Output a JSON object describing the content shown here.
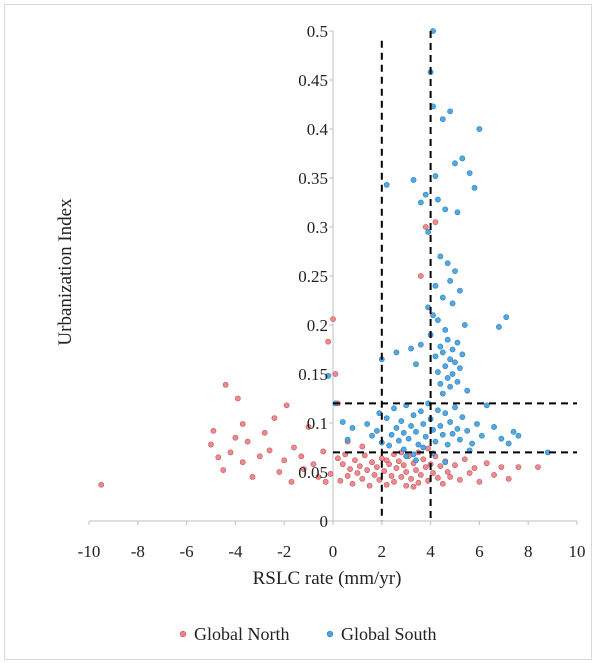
{
  "chart_data": {
    "type": "scatter",
    "xlabel": "RSLC rate (mm/yr)",
    "ylabel": "Urbanization Index",
    "xlim": [
      -10,
      10
    ],
    "ylim": [
      0,
      0.5
    ],
    "x_ticks": [
      "-10",
      "-8",
      "-6",
      "-4",
      "-2",
      "0",
      "2",
      "4",
      "6",
      "8",
      "10"
    ],
    "y_ticks": [
      "0",
      "0.05",
      "0.1",
      "0.15",
      "0.2",
      "0.25",
      "0.3",
      "0.35",
      "0.4",
      "0.45",
      "0.5"
    ],
    "legend_position": "bottom",
    "threshold_lines": {
      "vertical_x": [
        2,
        4
      ],
      "horizontal_y": [
        0.07,
        0.12
      ],
      "style": "dashed black"
    },
    "series": [
      {
        "name": "Global North",
        "color": "#e8858a",
        "points": [
          [
            -9.5,
            0.037
          ],
          [
            -4.4,
            0.139
          ],
          [
            -3.9,
            0.125
          ],
          [
            -3.7,
            0.099
          ],
          [
            -4.9,
            0.092
          ],
          [
            -5.0,
            0.078
          ],
          [
            -4.7,
            0.065
          ],
          [
            -4.5,
            0.052
          ],
          [
            -4.2,
            0.07
          ],
          [
            -4.0,
            0.085
          ],
          [
            -3.7,
            0.06
          ],
          [
            -3.5,
            0.081
          ],
          [
            -3.3,
            0.045
          ],
          [
            -3.0,
            0.066
          ],
          [
            -2.8,
            0.09
          ],
          [
            -2.6,
            0.072
          ],
          [
            -2.4,
            0.105
          ],
          [
            -2.2,
            0.05
          ],
          [
            -2.0,
            0.062
          ],
          [
            -1.9,
            0.118
          ],
          [
            -1.7,
            0.04
          ],
          [
            -1.6,
            0.075
          ],
          [
            -1.3,
            0.066
          ],
          [
            -1.2,
            0.053
          ],
          [
            -1.0,
            0.096
          ],
          [
            -0.8,
            0.058
          ],
          [
            -0.6,
            0.045
          ],
          [
            -0.4,
            0.071
          ],
          [
            -0.3,
            0.04
          ],
          [
            -0.1,
            0.048
          ],
          [
            -0.2,
            0.183
          ],
          [
            0.0,
            0.206
          ],
          [
            0.1,
            0.15
          ],
          [
            0.2,
            0.12
          ],
          [
            0.2,
            0.064
          ],
          [
            0.3,
            0.041
          ],
          [
            0.4,
            0.058
          ],
          [
            0.5,
            0.068
          ],
          [
            0.6,
            0.046
          ],
          [
            0.7,
            0.053
          ],
          [
            0.8,
            0.038
          ],
          [
            0.9,
            0.062
          ],
          [
            1.0,
            0.049
          ],
          [
            1.1,
            0.056
          ],
          [
            1.2,
            0.043
          ],
          [
            1.3,
            0.067
          ],
          [
            1.4,
            0.052
          ],
          [
            1.5,
            0.036
          ],
          [
            1.6,
            0.06
          ],
          [
            1.7,
            0.047
          ],
          [
            1.8,
            0.055
          ],
          [
            1.9,
            0.042
          ],
          [
            2.0,
            0.064
          ],
          [
            2.1,
            0.051
          ],
          [
            2.2,
            0.037
          ],
          [
            2.3,
            0.058
          ],
          [
            2.4,
            0.046
          ],
          [
            2.5,
            0.068
          ],
          [
            2.5,
            0.04
          ],
          [
            2.6,
            0.054
          ],
          [
            2.7,
            0.061
          ],
          [
            2.8,
            0.045
          ],
          [
            2.9,
            0.057
          ],
          [
            3.0,
            0.036
          ],
          [
            3.0,
            0.05
          ],
          [
            3.1,
            0.066
          ],
          [
            3.2,
            0.043
          ],
          [
            3.3,
            0.059
          ],
          [
            3.4,
            0.052
          ],
          [
            3.5,
            0.039
          ],
          [
            3.5,
            0.07
          ],
          [
            3.6,
            0.047
          ],
          [
            3.7,
            0.063
          ],
          [
            3.8,
            0.055
          ],
          [
            3.9,
            0.041
          ],
          [
            4.0,
            0.058
          ],
          [
            4.1,
            0.049
          ],
          [
            4.2,
            0.066
          ],
          [
            4.3,
            0.044
          ],
          [
            4.4,
            0.056
          ],
          [
            4.5,
            0.038
          ],
          [
            4.6,
            0.061
          ],
          [
            4.7,
            0.05
          ],
          [
            4.8,
            0.045
          ],
          [
            5.0,
            0.057
          ],
          [
            5.2,
            0.042
          ],
          [
            5.4,
            0.063
          ],
          [
            5.6,
            0.049
          ],
          [
            5.8,
            0.054
          ],
          [
            6.0,
            0.04
          ],
          [
            6.3,
            0.059
          ],
          [
            6.6,
            0.047
          ],
          [
            6.9,
            0.055
          ],
          [
            7.2,
            0.043
          ],
          [
            7.6,
            0.055
          ],
          [
            8.4,
            0.055
          ],
          [
            3.8,
            0.3
          ],
          [
            4.2,
            0.305
          ],
          [
            3.6,
            0.25
          ],
          [
            2.2,
            0.062
          ],
          [
            2.8,
            0.07
          ],
          [
            3.3,
            0.035
          ],
          [
            3.9,
            0.074
          ],
          [
            1.2,
            0.076
          ],
          [
            0.6,
            0.081
          ]
        ]
      },
      {
        "name": "Global South",
        "color": "#4aa3df",
        "points": [
          [
            4.1,
            0.5
          ],
          [
            4.0,
            0.458
          ],
          [
            4.1,
            0.423
          ],
          [
            4.5,
            0.41
          ],
          [
            4.8,
            0.418
          ],
          [
            6.0,
            0.4
          ],
          [
            5.0,
            0.365
          ],
          [
            5.3,
            0.37
          ],
          [
            5.6,
            0.355
          ],
          [
            4.2,
            0.352
          ],
          [
            3.3,
            0.348
          ],
          [
            2.2,
            0.343
          ],
          [
            3.8,
            0.333
          ],
          [
            4.3,
            0.328
          ],
          [
            5.8,
            0.34
          ],
          [
            3.6,
            0.325
          ],
          [
            4.6,
            0.318
          ],
          [
            5.1,
            0.315
          ],
          [
            3.9,
            0.295
          ],
          [
            4.4,
            0.27
          ],
          [
            4.7,
            0.263
          ],
          [
            5.0,
            0.255
          ],
          [
            4.8,
            0.245
          ],
          [
            4.2,
            0.24
          ],
          [
            5.2,
            0.235
          ],
          [
            4.5,
            0.228
          ],
          [
            4.9,
            0.222
          ],
          [
            3.9,
            0.218
          ],
          [
            4.1,
            0.21
          ],
          [
            7.1,
            0.208
          ],
          [
            4.3,
            0.205
          ],
          [
            5.4,
            0.2
          ],
          [
            6.8,
            0.198
          ],
          [
            4.6,
            0.195
          ],
          [
            4.0,
            0.19
          ],
          [
            4.7,
            0.185
          ],
          [
            5.1,
            0.182
          ],
          [
            4.4,
            0.178
          ],
          [
            4.9,
            0.175
          ],
          [
            4.5,
            0.172
          ],
          [
            5.3,
            0.17
          ],
          [
            4.2,
            0.168
          ],
          [
            4.8,
            0.165
          ],
          [
            5.0,
            0.162
          ],
          [
            4.6,
            0.158
          ],
          [
            5.2,
            0.156
          ],
          [
            4.3,
            0.152
          ],
          [
            4.9,
            0.15
          ],
          [
            4.7,
            0.146
          ],
          [
            5.1,
            0.142
          ],
          [
            4.4,
            0.14
          ],
          [
            4.8,
            0.137
          ],
          [
            5.5,
            0.133
          ],
          [
            4.5,
            0.13
          ],
          [
            3.6,
            0.18
          ],
          [
            3.2,
            0.176
          ],
          [
            2.6,
            0.172
          ],
          [
            2.0,
            0.165
          ],
          [
            1.9,
            0.11
          ],
          [
            3.4,
            0.16
          ],
          [
            -0.2,
            0.148
          ],
          [
            0.1,
            0.12
          ],
          [
            0.4,
            0.101
          ],
          [
            0.8,
            0.095
          ],
          [
            0.6,
            0.083
          ],
          [
            1.4,
            0.099
          ],
          [
            1.6,
            0.087
          ],
          [
            1.8,
            0.092
          ],
          [
            2.0,
            0.08
          ],
          [
            2.2,
            0.105
          ],
          [
            2.4,
            0.088
          ],
          [
            2.5,
            0.115
          ],
          [
            2.6,
            0.095
          ],
          [
            2.7,
            0.082
          ],
          [
            2.8,
            0.102
          ],
          [
            2.9,
            0.09
          ],
          [
            3.0,
            0.118
          ],
          [
            3.1,
            0.084
          ],
          [
            3.2,
            0.097
          ],
          [
            3.3,
            0.108
          ],
          [
            3.4,
            0.091
          ],
          [
            3.5,
            0.078
          ],
          [
            3.6,
            0.112
          ],
          [
            3.7,
            0.099
          ],
          [
            3.8,
            0.086
          ],
          [
            3.9,
            0.12
          ],
          [
            4.0,
            0.104
          ],
          [
            4.1,
            0.093
          ],
          [
            4.2,
            0.081
          ],
          [
            4.3,
            0.113
          ],
          [
            4.4,
            0.097
          ],
          [
            4.5,
            0.088
          ],
          [
            4.6,
            0.11
          ],
          [
            4.7,
            0.078
          ],
          [
            4.8,
            0.101
          ],
          [
            4.9,
            0.089
          ],
          [
            5.0,
            0.116
          ],
          [
            5.1,
            0.094
          ],
          [
            5.2,
            0.083
          ],
          [
            5.3,
            0.106
          ],
          [
            5.5,
            0.092
          ],
          [
            5.7,
            0.079
          ],
          [
            5.9,
            0.099
          ],
          [
            6.1,
            0.087
          ],
          [
            6.3,
            0.118
          ],
          [
            6.6,
            0.096
          ],
          [
            6.9,
            0.084
          ],
          [
            7.2,
            0.079
          ],
          [
            7.4,
            0.091
          ],
          [
            7.6,
            0.087
          ],
          [
            8.8,
            0.07
          ],
          [
            3.0,
            0.066
          ],
          [
            3.4,
            0.062
          ],
          [
            2.9,
            0.073
          ],
          [
            4.1,
            0.069
          ],
          [
            3.7,
            0.075
          ],
          [
            2.3,
            0.077
          ],
          [
            5.6,
            0.072
          ],
          [
            4.6,
            0.06
          ],
          [
            3.3,
            0.068
          ]
        ]
      }
    ]
  }
}
